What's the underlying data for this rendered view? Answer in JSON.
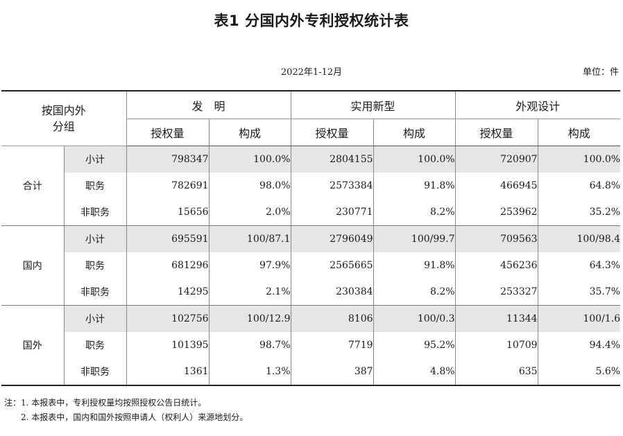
{
  "title": "表1  分国内外专利授权统计表",
  "period": "2022年1-12月",
  "unit": "单位：件",
  "header": {
    "group_label_line1": "按国内外",
    "group_label_line2": "分组",
    "col_groups": [
      "发　明",
      "实用新型",
      "外观设计"
    ],
    "sub_cols": [
      "授权量",
      "构成"
    ]
  },
  "groups": [
    {
      "name": "合计",
      "rows": [
        {
          "label": "小计",
          "values": [
            "798347",
            "100.0%",
            "2804155",
            "100.0%",
            "720907",
            "100.0%"
          ]
        },
        {
          "label": "职务",
          "values": [
            "782691",
            "98.0%",
            "2573384",
            "91.8%",
            "466945",
            "64.8%"
          ]
        },
        {
          "label": "非职务",
          "values": [
            "15656",
            "2.0%",
            "230771",
            "8.2%",
            "253962",
            "35.2%"
          ]
        }
      ]
    },
    {
      "name": "国内",
      "rows": [
        {
          "label": "小计",
          "values": [
            "695591",
            "100/87.1",
            "2796049",
            "100/99.7",
            "709563",
            "100/98.4"
          ]
        },
        {
          "label": "职务",
          "values": [
            "681296",
            "97.9%",
            "2565665",
            "91.8%",
            "456236",
            "64.3%"
          ]
        },
        {
          "label": "非职务",
          "values": [
            "14295",
            "2.1%",
            "230384",
            "8.2%",
            "253327",
            "35.7%"
          ]
        }
      ]
    },
    {
      "name": "国外",
      "rows": [
        {
          "label": "小计",
          "values": [
            "102756",
            "100/12.9",
            "8106",
            "100/0.3",
            "11344",
            "100/1.6"
          ]
        },
        {
          "label": "职务",
          "values": [
            "101395",
            "98.7%",
            "7719",
            "95.2%",
            "10709",
            "94.4%"
          ]
        },
        {
          "label": "非职务",
          "values": [
            "1361",
            "1.3%",
            "387",
            "4.8%",
            "635",
            "5.6%"
          ]
        }
      ]
    }
  ],
  "notes": [
    "注：1. 本报表中，专利授权量均按照授权公告日统计。",
    "2. 本报表中，国内和国外按照申请人（权利人）来源地划分。"
  ]
}
